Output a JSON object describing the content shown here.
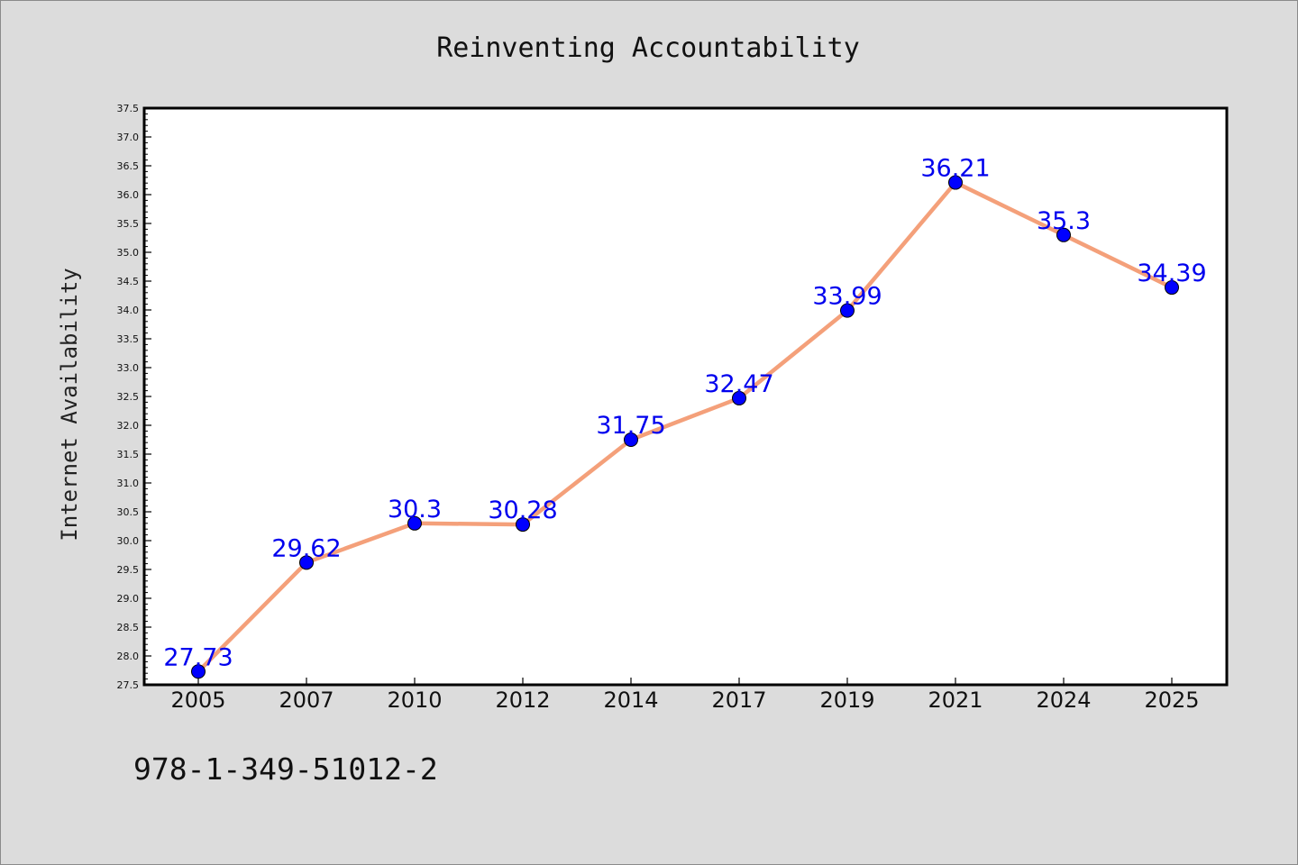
{
  "footer": {
    "code": "978-1-349-51012-2"
  },
  "chart_data": {
    "type": "line",
    "title": "Reinventing Accountability",
    "xlabel": "",
    "ylabel": "Internet Availability",
    "categories": [
      "2005",
      "2007",
      "2010",
      "2012",
      "2014",
      "2017",
      "2019",
      "2021",
      "2024",
      "2025"
    ],
    "series": [
      {
        "values": [
          27.73,
          29.62,
          30.3,
          30.28,
          31.75,
          32.47,
          33.99,
          36.21,
          35.3,
          34.39
        ],
        "labels": [
          "27.73",
          "29.62",
          "30.3",
          "30.28",
          "31.75",
          "32.47",
          "33.99",
          "36.21",
          "35.3",
          "34.39"
        ],
        "line_color": "#f4a07a",
        "marker_color": "#0000ff"
      }
    ],
    "ylim": [
      27.5,
      37.5
    ],
    "y_ticks": [
      "27.5",
      "28.0",
      "28.5",
      "29.0",
      "29.5",
      "30.0",
      "30.5",
      "31.0",
      "31.5",
      "32.0",
      "32.5",
      "33.0",
      "33.5",
      "34.0",
      "34.5",
      "35.0",
      "35.5",
      "36.0",
      "36.5",
      "37.0",
      "37.5"
    ],
    "grid": false,
    "legend": "none",
    "colors": {
      "background": "#dcdcdc",
      "plot_background": "#ffffff",
      "label_color": "#0000ee"
    }
  }
}
